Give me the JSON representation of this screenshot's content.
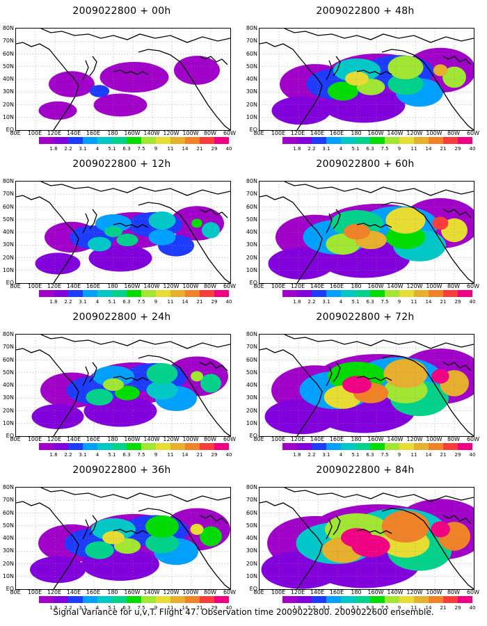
{
  "panels": [
    {
      "title": "2009022800 + 00h",
      "level": 0
    },
    {
      "title": "2009022800 + 48h",
      "level": 3
    },
    {
      "title": "2009022800 + 12h",
      "level": 1
    },
    {
      "title": "2009022800 + 60h",
      "level": 4
    },
    {
      "title": "2009022800 + 24h",
      "level": 2
    },
    {
      "title": "2009022800 + 72h",
      "level": 5
    },
    {
      "title": "2009022800 + 36h",
      "level": 2.5
    },
    {
      "title": "2009022800 + 84h",
      "level": 6
    }
  ],
  "lat_labels": [
    "80N",
    "70N",
    "60N",
    "50N",
    "40N",
    "30N",
    "20N",
    "10N",
    "EQ"
  ],
  "lon_labels": [
    "80E",
    "100E",
    "120E",
    "140E",
    "160E",
    "180",
    "160W",
    "140W",
    "120W",
    "100W",
    "80W",
    "60W"
  ],
  "colorbar": {
    "colors": [
      "#a000c8",
      "#8200dc",
      "#1e3cff",
      "#00a0ff",
      "#00c8c8",
      "#00d28c",
      "#00dc00",
      "#a0e632",
      "#e6dc32",
      "#e6af2d",
      "#f08228",
      "#fa3c3c",
      "#f00082"
    ],
    "labels": [
      "1.8",
      "2.2",
      "3.1",
      "4",
      "5.1",
      "6.3",
      "7.5",
      "9",
      "11",
      "14",
      "21",
      "29",
      "40"
    ]
  },
  "caption": "Signal Variance for u,v,T. Flight 47. Observation time 2009022800. 2009022600 ensemble."
}
